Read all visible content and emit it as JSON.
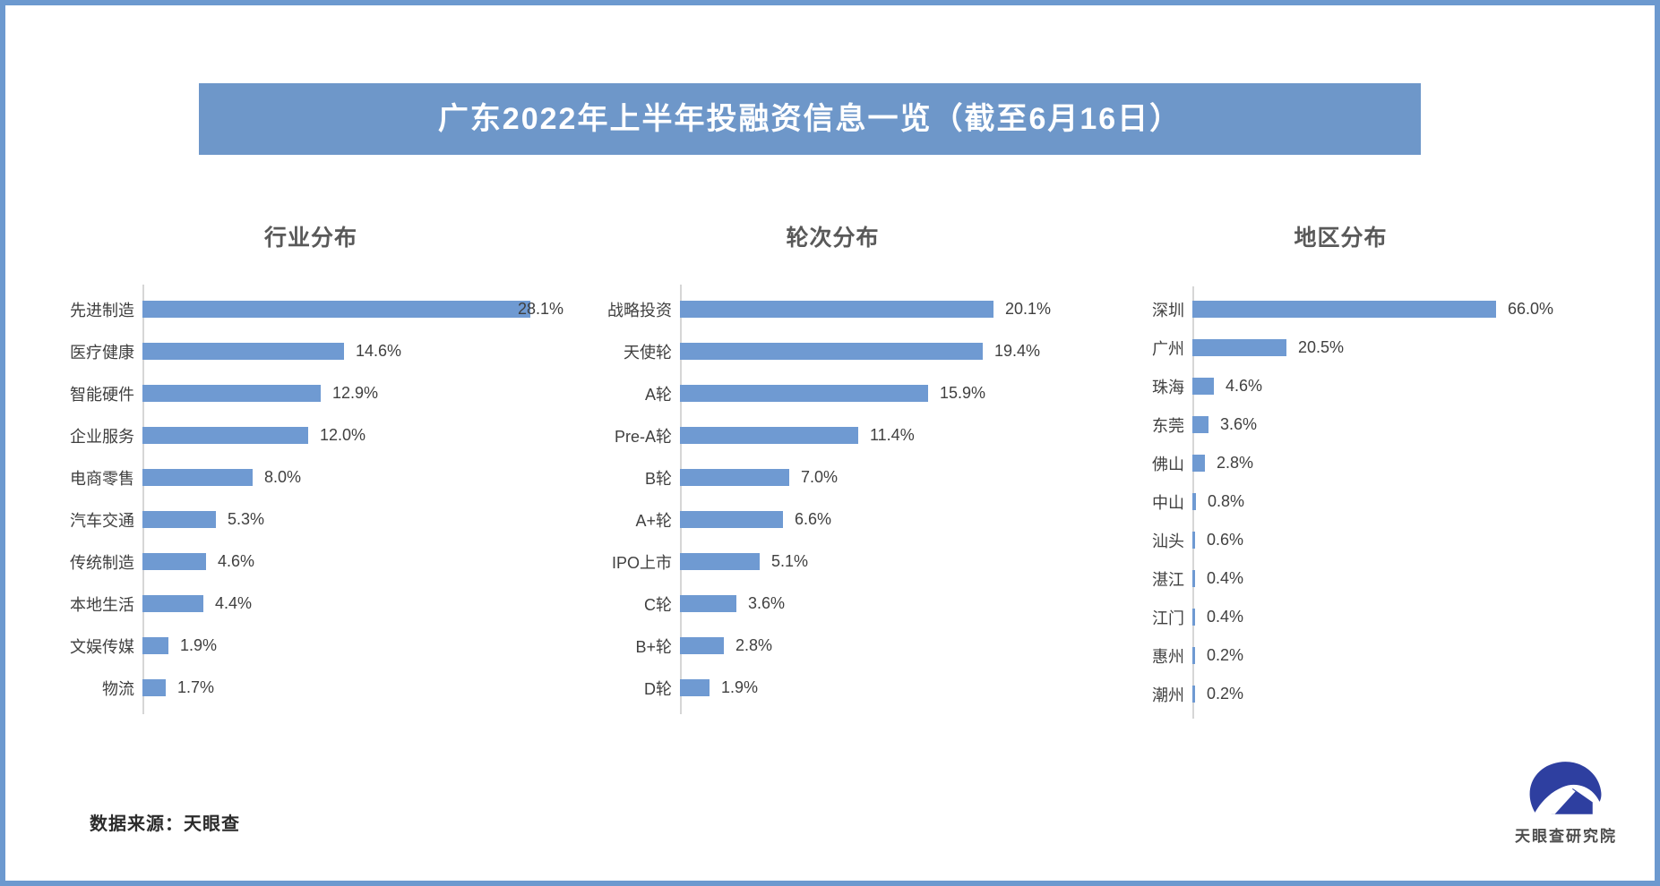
{
  "banner": {
    "title": "广东2022年上半年投融资信息一览（截至6月16日）"
  },
  "colors": {
    "frame": "#6c99cf",
    "banner_bg": "#6e97c9",
    "bar": "#6f9ad2",
    "axis": "#d6d6d6",
    "logo": "#2e3fa0"
  },
  "chart_data": [
    {
      "type": "bar",
      "orientation": "horizontal",
      "title": "行业分布",
      "categories": [
        "先进制造",
        "医疗健康",
        "智能硬件",
        "企业服务",
        "电商零售",
        "汽车交通",
        "传统制造",
        "本地生活",
        "文娱传媒",
        "物流"
      ],
      "values": [
        28.1,
        14.6,
        12.9,
        12.0,
        8.0,
        5.3,
        4.6,
        4.4,
        1.9,
        1.7
      ],
      "value_suffix": "%",
      "xlabel": "",
      "ylabel": "",
      "grid": false,
      "legend": "none",
      "data_labels": true
    },
    {
      "type": "bar",
      "orientation": "horizontal",
      "title": "轮次分布",
      "categories": [
        "战略投资",
        "天使轮",
        "A轮",
        "Pre-A轮",
        "B轮",
        "A+轮",
        "IPO上市",
        "C轮",
        "B+轮",
        "D轮"
      ],
      "values": [
        20.1,
        19.4,
        15.9,
        11.4,
        7.0,
        6.6,
        5.1,
        3.6,
        2.8,
        1.9
      ],
      "value_suffix": "%",
      "xlabel": "",
      "ylabel": "",
      "grid": false,
      "legend": "none",
      "data_labels": true
    },
    {
      "type": "bar",
      "orientation": "horizontal",
      "title": "地区分布",
      "categories": [
        "深圳",
        "广州",
        "珠海",
        "东莞",
        "佛山",
        "中山",
        "汕头",
        "湛江",
        "江门",
        "惠州",
        "潮州"
      ],
      "values": [
        66.0,
        20.5,
        4.6,
        3.6,
        2.8,
        0.8,
        0.6,
        0.4,
        0.4,
        0.2,
        0.2
      ],
      "value_suffix": "%",
      "xlabel": "",
      "ylabel": "",
      "grid": false,
      "legend": "none",
      "data_labels": true
    }
  ],
  "footer": {
    "source_note": "数据来源：天眼查",
    "logo_text": "天眼查研究院"
  }
}
